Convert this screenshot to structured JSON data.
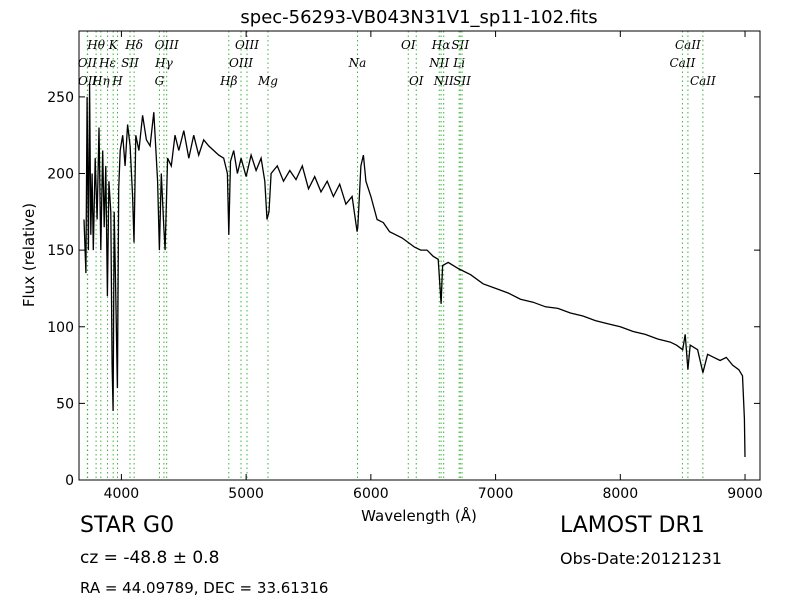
{
  "colors": {
    "spectrum": "#000000",
    "line_marker": "#3cb33c",
    "frame": "#000000"
  },
  "chart_data": {
    "type": "line",
    "title": "spec-56293-VB043N31V1_sp11-102.fits",
    "xlabel": "Wavelength (Å)",
    "ylabel": "Flux (relative)",
    "xlim": [
      3660,
      9120
    ],
    "ylim": [
      0,
      293
    ],
    "xticks": [
      4000,
      5000,
      6000,
      7000,
      8000,
      9000
    ],
    "yticks": [
      0,
      50,
      100,
      150,
      200,
      250
    ],
    "grid": false,
    "series": [
      {
        "values_xy": [
          [
            3700,
            170
          ],
          [
            3715,
            135
          ],
          [
            3725,
            250
          ],
          [
            3735,
            150
          ],
          [
            3745,
            258
          ],
          [
            3755,
            160
          ],
          [
            3765,
            200
          ],
          [
            3775,
            150
          ],
          [
            3790,
            210
          ],
          [
            3805,
            170
          ],
          [
            3820,
            230
          ],
          [
            3835,
            150
          ],
          [
            3850,
            215
          ],
          [
            3862,
            165
          ],
          [
            3875,
            205
          ],
          [
            3888,
            120
          ],
          [
            3900,
            195
          ],
          [
            3915,
            175
          ],
          [
            3925,
            75
          ],
          [
            3933,
            45
          ],
          [
            3942,
            175
          ],
          [
            3955,
            120
          ],
          [
            3968,
            60
          ],
          [
            3978,
            190
          ],
          [
            3990,
            215
          ],
          [
            4010,
            225
          ],
          [
            4030,
            205
          ],
          [
            4050,
            232
          ],
          [
            4070,
            218
          ],
          [
            4090,
            185
          ],
          [
            4101,
            155
          ],
          [
            4115,
            225
          ],
          [
            4140,
            215
          ],
          [
            4170,
            238
          ],
          [
            4200,
            222
          ],
          [
            4230,
            218
          ],
          [
            4260,
            240
          ],
          [
            4290,
            195
          ],
          [
            4305,
            150
          ],
          [
            4320,
            200
          ],
          [
            4340,
            165
          ],
          [
            4350,
            150
          ],
          [
            4370,
            210
          ],
          [
            4400,
            205
          ],
          [
            4430,
            225
          ],
          [
            4460,
            215
          ],
          [
            4500,
            228
          ],
          [
            4540,
            210
          ],
          [
            4580,
            225
          ],
          [
            4620,
            212
          ],
          [
            4660,
            222
          ],
          [
            4700,
            218
          ],
          [
            4740,
            215
          ],
          [
            4780,
            212
          ],
          [
            4820,
            210
          ],
          [
            4850,
            200
          ],
          [
            4861,
            160
          ],
          [
            4875,
            208
          ],
          [
            4900,
            215
          ],
          [
            4930,
            200
          ],
          [
            4960,
            210
          ],
          [
            5000,
            198
          ],
          [
            5040,
            212
          ],
          [
            5080,
            202
          ],
          [
            5120,
            210
          ],
          [
            5150,
            195
          ],
          [
            5167,
            170
          ],
          [
            5183,
            175
          ],
          [
            5200,
            200
          ],
          [
            5250,
            205
          ],
          [
            5300,
            195
          ],
          [
            5350,
            202
          ],
          [
            5400,
            196
          ],
          [
            5450,
            205
          ],
          [
            5500,
            190
          ],
          [
            5550,
            198
          ],
          [
            5600,
            188
          ],
          [
            5650,
            195
          ],
          [
            5700,
            185
          ],
          [
            5750,
            193
          ],
          [
            5800,
            180
          ],
          [
            5850,
            185
          ],
          [
            5890,
            162
          ],
          [
            5895,
            165
          ],
          [
            5920,
            205
          ],
          [
            5940,
            212
          ],
          [
            5960,
            195
          ],
          [
            6000,
            185
          ],
          [
            6050,
            170
          ],
          [
            6100,
            168
          ],
          [
            6150,
            162
          ],
          [
            6200,
            160
          ],
          [
            6250,
            158
          ],
          [
            6300,
            155
          ],
          [
            6350,
            152
          ],
          [
            6400,
            150
          ],
          [
            6450,
            150
          ],
          [
            6500,
            146
          ],
          [
            6540,
            144
          ],
          [
            6563,
            115
          ],
          [
            6575,
            140
          ],
          [
            6620,
            142
          ],
          [
            6700,
            138
          ],
          [
            6800,
            134
          ],
          [
            6900,
            128
          ],
          [
            7000,
            125
          ],
          [
            7100,
            122
          ],
          [
            7200,
            118
          ],
          [
            7300,
            116
          ],
          [
            7400,
            113
          ],
          [
            7500,
            112
          ],
          [
            7600,
            109
          ],
          [
            7700,
            107
          ],
          [
            7800,
            104
          ],
          [
            7900,
            102
          ],
          [
            8000,
            100
          ],
          [
            8100,
            97
          ],
          [
            8200,
            95
          ],
          [
            8300,
            92
          ],
          [
            8400,
            90
          ],
          [
            8450,
            88
          ],
          [
            8500,
            85
          ],
          [
            8520,
            95
          ],
          [
            8542,
            72
          ],
          [
            8560,
            88
          ],
          [
            8620,
            85
          ],
          [
            8662,
            70
          ],
          [
            8700,
            82
          ],
          [
            8750,
            80
          ],
          [
            8800,
            78
          ],
          [
            8850,
            80
          ],
          [
            8900,
            75
          ],
          [
            8950,
            72
          ],
          [
            8980,
            68
          ],
          [
            8995,
            40
          ],
          [
            9000,
            15
          ]
        ]
      }
    ],
    "line_markers": [
      {
        "label": "Hθ",
        "x": 3797,
        "row": 1
      },
      {
        "label": "OII",
        "x": 3727,
        "row": 2
      },
      {
        "label": "OII",
        "x": 3729,
        "row": 3
      },
      {
        "label": "Hη",
        "x": 3835,
        "row": 3
      },
      {
        "label": "K",
        "x": 3934,
        "row": 1
      },
      {
        "label": "Hε",
        "x": 3889,
        "row": 2
      },
      {
        "label": "SII",
        "x": 4069,
        "row": 2
      },
      {
        "label": "H",
        "x": 3969,
        "row": 3
      },
      {
        "label": "Hδ",
        "x": 4102,
        "row": 1
      },
      {
        "label": "OIII",
        "x": 4363,
        "row": 1
      },
      {
        "label": "Hγ",
        "x": 4341,
        "row": 2
      },
      {
        "label": "G",
        "x": 4305,
        "row": 3
      },
      {
        "label": "OIII",
        "x": 5007,
        "row": 1
      },
      {
        "label": "OIII",
        "x": 4959,
        "row": 2
      },
      {
        "label": "Hβ",
        "x": 4861,
        "row": 3
      },
      {
        "label": "Mg",
        "x": 5175,
        "row": 3
      },
      {
        "label": "Na",
        "x": 5893,
        "row": 2
      },
      {
        "label": "OI",
        "x": 6300,
        "row": 1
      },
      {
        "label": "OI",
        "x": 6364,
        "row": 3
      },
      {
        "label": "Hα",
        "x": 6563,
        "row": 1
      },
      {
        "label": "SII",
        "x": 6717,
        "row": 1
      },
      {
        "label": "NII",
        "x": 6548,
        "row": 2
      },
      {
        "label": "Li",
        "x": 6708,
        "row": 2
      },
      {
        "label": "NII",
        "x": 6584,
        "row": 3
      },
      {
        "label": "SII",
        "x": 6731,
        "row": 3
      },
      {
        "label": "CaII",
        "x": 8542,
        "row": 1
      },
      {
        "label": "CaII",
        "x": 8498,
        "row": 2
      },
      {
        "label": "CaII",
        "x": 8662,
        "row": 3
      }
    ]
  },
  "info": {
    "object_class": "STAR   G0",
    "survey": "LAMOST DR1",
    "redshift": "cz = -48.8 ± 0.8",
    "obs_date": "Obs-Date:20121231",
    "coords": "RA = 44.09789, DEC = 33.61316"
  }
}
